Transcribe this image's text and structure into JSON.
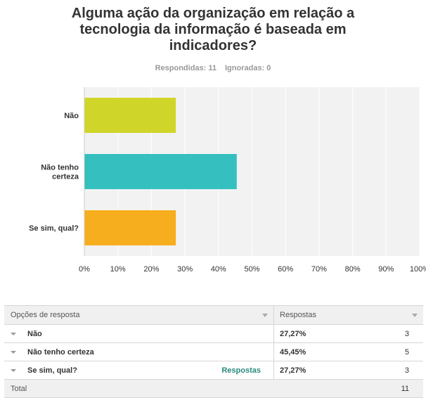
{
  "survey": {
    "title_lines": [
      "Alguma ação da organização em relação a",
      "tecnologia da informação é baseada em",
      "indicadores?"
    ],
    "answered_label": "Respondidas: 11",
    "skipped_label": "Ignoradas: 0"
  },
  "chart_data": {
    "type": "bar",
    "orientation": "horizontal",
    "categories": [
      "Não",
      "Não tenho certeza",
      "Se sim, qual?"
    ],
    "category_label_lines": [
      [
        "Não"
      ],
      [
        "Não tenho",
        "certeza"
      ],
      [
        "Se sim, qual?"
      ]
    ],
    "values": [
      27.27,
      45.45,
      27.27
    ],
    "colors": [
      "#d0d629",
      "#35bfbf",
      "#f7ae1e"
    ],
    "xlim": [
      0,
      100
    ],
    "x_ticks": [
      "0%",
      "10%",
      "20%",
      "30%",
      "40%",
      "50%",
      "60%",
      "70%",
      "80%",
      "90%",
      "100%"
    ],
    "grid": true,
    "plot_background": "#f2f2f2"
  },
  "table": {
    "header_option": "Opções de resposta",
    "header_responses": "Respostas",
    "rows": [
      {
        "label": "Não",
        "percent": "27,27%",
        "count": "3"
      },
      {
        "label": "Não tenho certeza",
        "percent": "45,45%",
        "count": "5"
      },
      {
        "label": "Se sim, qual?",
        "percent": "27,27%",
        "count": "3",
        "link": "Respostas"
      }
    ],
    "total_label": "Total",
    "total_count": "11"
  }
}
